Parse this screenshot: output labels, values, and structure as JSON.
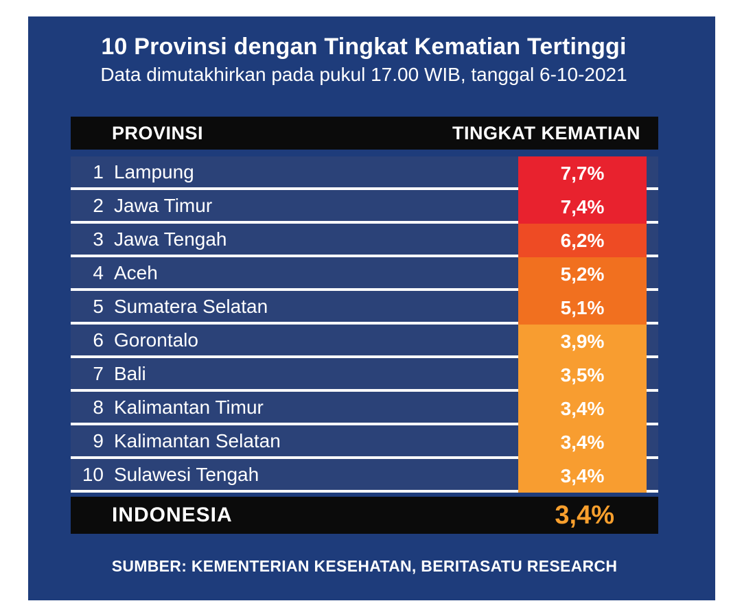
{
  "header": {
    "title": "10 Provinsi dengan Tingkat Kematian Tertinggi",
    "subtitle": "Data dimutakhirkan pada pukul 17.00 WIB, tanggal 6-10-2021"
  },
  "table": {
    "col_province": "PROVINSI",
    "col_rate": "TINGKAT KEMATIAN",
    "rows": [
      {
        "rank": "1",
        "province": "Lampung",
        "rate": "7,7%",
        "color": "#e8222e"
      },
      {
        "rank": "2",
        "province": "Jawa Timur",
        "rate": "7,4%",
        "color": "#e8222e"
      },
      {
        "rank": "3",
        "province": "Jawa Tengah",
        "rate": "6,2%",
        "color": "#ee4b24"
      },
      {
        "rank": "4",
        "province": "Aceh",
        "rate": "5,2%",
        "color": "#f1701f"
      },
      {
        "rank": "5",
        "province": "Sumatera Selatan",
        "rate": "5,1%",
        "color": "#f1701f"
      },
      {
        "rank": "6",
        "province": "Gorontalo",
        "rate": "3,9%",
        "color": "#f89d30"
      },
      {
        "rank": "7",
        "province": "Bali",
        "rate": "3,5%",
        "color": "#f89d30"
      },
      {
        "rank": "8",
        "province": "Kalimantan Timur",
        "rate": "3,4%",
        "color": "#f89d30"
      },
      {
        "rank": "9",
        "province": "Kalimantan Selatan",
        "rate": "3,4%",
        "color": "#f89d30"
      },
      {
        "rank": "10",
        "province": "Sulawesi Tengah",
        "rate": "3,4%",
        "color": "#f89d30"
      }
    ],
    "summary": {
      "label": "INDONESIA",
      "rate": "3,4%",
      "rate_color": "#f89f2d"
    }
  },
  "source": "SUMBER: KEMENTERIAN KESEHATAN, BERITASATU RESEARCH",
  "colors": {
    "page_background": "#1e3c7b",
    "row_background": "#2b4278",
    "header_footer_background": "#0b0b0b",
    "separator": "#fbfbfb",
    "text": "#ffffff"
  },
  "chart_data": {
    "type": "table",
    "title": "10 Provinsi dengan Tingkat Kematian Tertinggi",
    "subtitle": "Data dimutakhirkan pada pukul 17.00 WIB, tanggal 6-10-2021",
    "columns": [
      "PROVINSI",
      "TINGKAT KEMATIAN"
    ],
    "categories": [
      "Lampung",
      "Jawa Timur",
      "Jawa Tengah",
      "Aceh",
      "Sumatera Selatan",
      "Gorontalo",
      "Bali",
      "Kalimantan Timur",
      "Kalimantan Selatan",
      "Sulawesi Tengah"
    ],
    "values": [
      7.7,
      7.4,
      6.2,
      5.2,
      5.1,
      3.9,
      3.5,
      3.4,
      3.4,
      3.4
    ],
    "value_unit": "%",
    "national_label": "INDONESIA",
    "national_value": 3.4,
    "source": "SUMBER: KEMENTERIAN KESEHATAN, BERITASATU RESEARCH"
  }
}
